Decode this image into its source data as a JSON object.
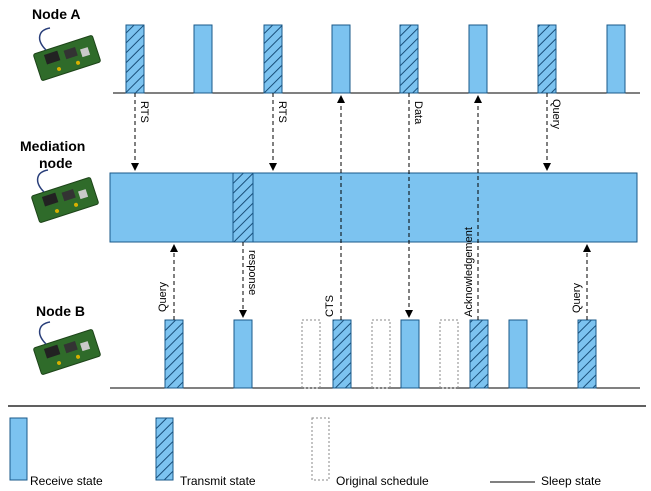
{
  "nodes": {
    "node_a": "Node A",
    "mediation_line1": "Mediation",
    "mediation_line2": "node",
    "node_b": "Node B"
  },
  "messages": {
    "rts_1": "RTS",
    "rts_2": "RTS",
    "cts": "CTS",
    "data": "Data",
    "acknowledgement": "Acknowledgement",
    "query_a": "Query",
    "query_b1": "Query",
    "response": "response",
    "query_b2": "Query"
  },
  "legend": {
    "receive": "Receive state",
    "transmit": "Transmit state",
    "original": "Original schedule",
    "sleep": "Sleep state"
  },
  "colors": {
    "receive_fill": "#7cc3f0",
    "block_stroke": "#1a5a8a",
    "line": "#000000"
  }
}
